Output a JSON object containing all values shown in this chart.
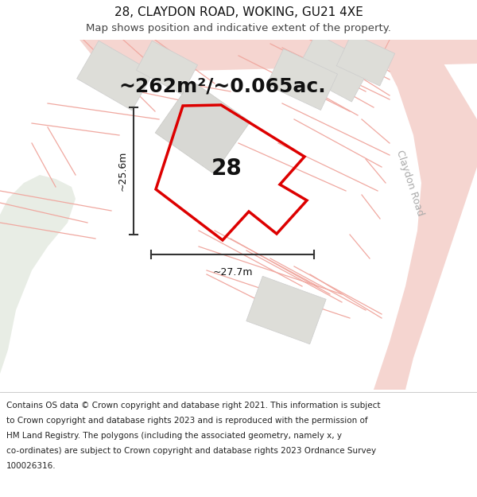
{
  "title": "28, CLAYDON ROAD, WOKING, GU21 4XE",
  "subtitle": "Map shows position and indicative extent of the property.",
  "area_text": "~262m²/~0.065ac.",
  "width_label": "~27.7m",
  "height_label": "~25.6m",
  "number_label": "28",
  "road_label": "Claydon Road",
  "footer_lines": [
    "Contains OS data © Crown copyright and database right 2021. This information is subject",
    "to Crown copyright and database rights 2023 and is reproduced with the permission of",
    "HM Land Registry. The polygons (including the associated geometry, namely x, y",
    "co-ordinates) are subject to Crown copyright and database rights 2023 Ordnance Survey",
    "100026316."
  ],
  "bg_color": "#f7f7f5",
  "road_fill": "#f5d5d0",
  "road_line": "#f0a8a0",
  "building_fill": "#ddddd8",
  "building_edge": "#cccccc",
  "plot_red": "#dd0000",
  "measure_color": "#333333",
  "green_fill": "#e8ede5",
  "road_label_color": "#aaaaaa",
  "text_dark": "#111111",
  "text_gray": "#444444",
  "footer_color": "#222222"
}
